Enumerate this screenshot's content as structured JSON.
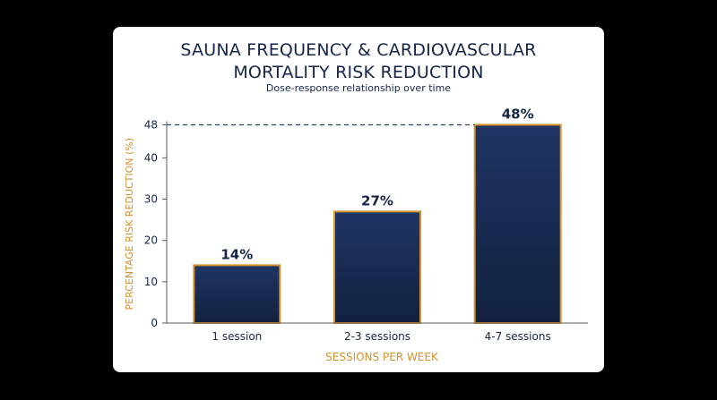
{
  "chart_data": {
    "type": "bar",
    "title_lines": [
      "SAUNA FREQUENCY & CARDIOVASCULAR",
      "MORTALITY RISK REDUCTION"
    ],
    "subtitle": "Dose-response relationship over time",
    "xlabel": "SESSIONS PER WEEK",
    "ylabel": "PERCENTAGE RISK REDUCTION (%)",
    "categories": [
      "1 session",
      "2-3 sessions",
      "4-7 sessions"
    ],
    "values": [
      14,
      27,
      48
    ],
    "value_labels": [
      "14%",
      "27%",
      "48%"
    ],
    "y_ticks": [
      0,
      10,
      20,
      30,
      40,
      48
    ],
    "y_tick_labels": [
      "0",
      "10",
      "20",
      "30",
      "40",
      "48"
    ],
    "ylim": [
      0,
      48
    ],
    "reference_line": {
      "value": 48,
      "style": "dashed"
    },
    "grid": false,
    "legend": "none"
  },
  "colors": {
    "background": "#000000",
    "card": "#ffffff",
    "title": "#15254a",
    "bar_top": "#1f3564",
    "bar_bottom": "#12213f",
    "bar_border": "#d4922f",
    "axis_label": "#d4922f",
    "axis": "#5a5a5a",
    "text": "#15254a"
  }
}
